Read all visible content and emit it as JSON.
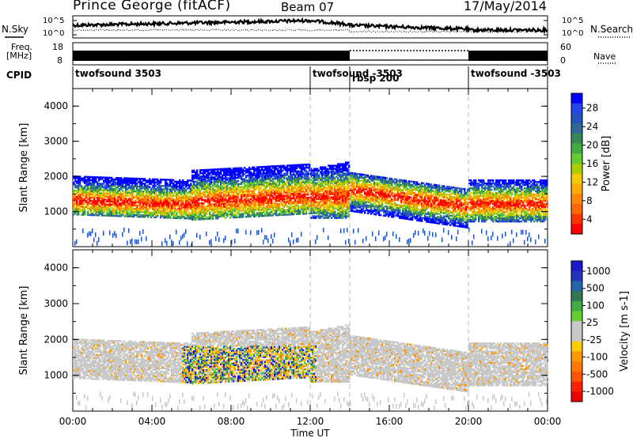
{
  "header": {
    "station": "Prince George (fitACF)",
    "beam": "Beam 07",
    "date": "17/May/2014"
  },
  "labels": {
    "nsky": "N.Sky",
    "nsearch": "N.Search",
    "freq": "Freq.",
    "mhz": "[MHz]",
    "nave": "Nave",
    "cpid": "CPID"
  },
  "noise": {
    "left_ticks": [
      "10^5",
      "10^0"
    ],
    "right_ticks": [
      "10^5",
      "10^0"
    ]
  },
  "freq_panel": {
    "left_ticks": [
      "18",
      "8"
    ],
    "right_ticks": [
      "60",
      "0"
    ]
  },
  "cpid_segments": [
    {
      "label": "twofsound 3503",
      "start_hour": 0,
      "end_hour": 12
    },
    {
      "label": "twofsound -3503",
      "start_hour": 12,
      "end_hour": 14
    },
    {
      "label": "rbsp 200",
      "start_hour": 14,
      "end_hour": 20
    },
    {
      "label": "twofsound -3503",
      "start_hour": 20,
      "end_hour": 24
    }
  ],
  "chart_data": [
    {
      "type": "heatmap",
      "quantity": "power",
      "ylabel": "Slant Range [km]",
      "ylim": [
        0,
        4500
      ],
      "yticks": [
        "4000",
        "3000",
        "2000",
        "1000"
      ],
      "xlim_hours": [
        0,
        24
      ],
      "colorbar_label": "Power [dB]",
      "colorbar_ticks": [
        "28",
        "24",
        "20",
        "16",
        "12",
        "8",
        "4"
      ],
      "colorbar_colors": [
        "#0000ff",
        "#2244ee",
        "#2255bb",
        "#336699",
        "#338855",
        "#44aa44",
        "#66cc33",
        "#aacc00",
        "#eecc00",
        "#ffaa00",
        "#ff8800",
        "#ff6600",
        "#ff3300",
        "#ff0000"
      ],
      "colorbar_range": [
        0,
        30
      ]
    },
    {
      "type": "heatmap",
      "quantity": "velocity",
      "ylabel": "Slant Range [km]",
      "ylim": [
        0,
        4500
      ],
      "yticks": [
        "4000",
        "3000",
        "2000",
        "1000"
      ],
      "xlim_hours": [
        0,
        24
      ],
      "xlabel": "Time UT",
      "xticks": [
        "00:00",
        "04:00",
        "08:00",
        "12:00",
        "16:00",
        "20:00",
        "00:00"
      ],
      "colorbar_label": "Velocity [m s-1]",
      "colorbar_ticks": [
        "1000",
        "500",
        "100",
        "25",
        "-25",
        "-100",
        "-500",
        "-1000"
      ],
      "colorbar_colors": [
        "#1a1acc",
        "#2233bb",
        "#2266aa",
        "#337755",
        "#44aa44",
        "#66cc33",
        "#c8c8c8",
        "#c8c8c8",
        "#ffcc00",
        "#ff9900",
        "#ff7700",
        "#ff5500",
        "#ff2200",
        "#ee0000"
      ]
    }
  ]
}
